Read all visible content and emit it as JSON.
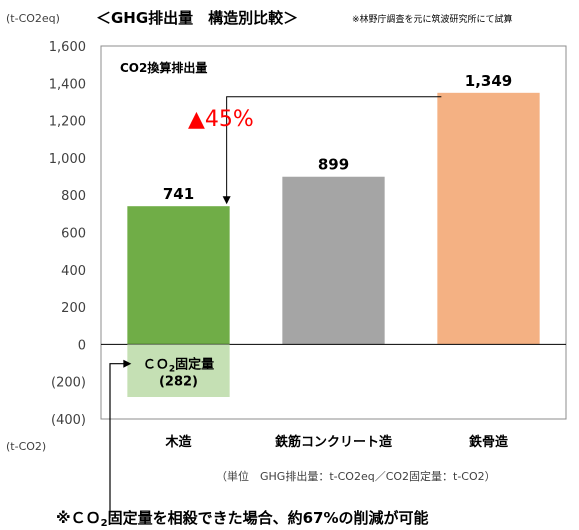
{
  "chart_data": {
    "type": "bar",
    "title": "＜GHG排出量　構造別比較＞",
    "note": "※林野庁調査を元に筑波研究所にて試算",
    "y_unit_top": "(t-CO2eq)",
    "y_unit_bottom": "(t-CO2)",
    "inner_label": "CO2換算排出量",
    "categories": [
      "木造",
      "鉄筋コンクリート造",
      "鉄骨造"
    ],
    "values": [
      741,
      899,
      1349
    ],
    "value_labels": [
      "741",
      "899",
      "1,349"
    ],
    "ylim": [
      -400,
      1600
    ],
    "yticks": [
      -400,
      -200,
      0,
      200,
      400,
      600,
      800,
      1000,
      1200,
      1400,
      1600
    ],
    "ytick_labels": [
      "(400)",
      "(200)",
      "0",
      "200",
      "400",
      "600",
      "800",
      "1,000",
      "1,200",
      "1,400",
      "1,600"
    ],
    "grid": false,
    "bar_colors": [
      "#70AD47",
      "#A5A5A5",
      "#F4B183"
    ],
    "fixation": {
      "category": "木造",
      "value": -282,
      "label_line1": "ＣＯ",
      "label_sub": "2",
      "label_line1_rest": "固定量",
      "label_value": "(282)",
      "color": "#C5E0B4"
    },
    "annotation": {
      "text": "▲45%",
      "color": "#FF0000"
    },
    "units_note": "（単位　GHG排出量：t-CO2eq／CO2固定量：t-CO2）",
    "footer": "※CO2固定量を相殺できた場合、約67%の削減が可能",
    "footer_prefix": "※ＣＯ",
    "footer_sub": "2",
    "footer_rest": "固定量を相殺できた場合、約67%の削減が可能"
  }
}
